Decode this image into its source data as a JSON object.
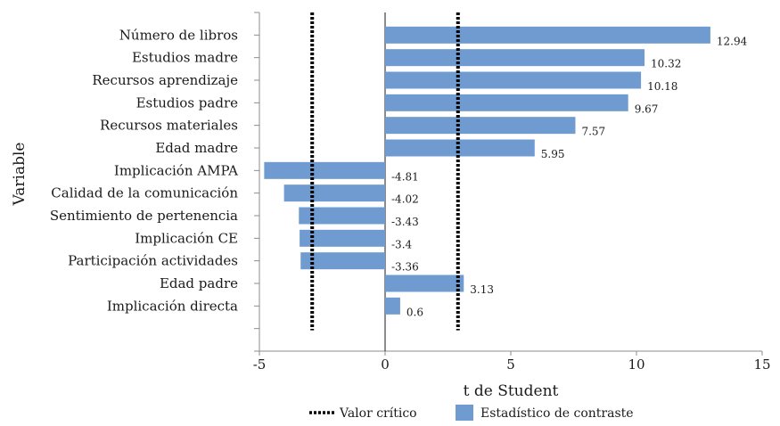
{
  "chart_data": {
    "type": "bar",
    "orientation": "horizontal",
    "title": "",
    "xlabel": "t de Student",
    "ylabel": "Variable",
    "xlim": [
      -5,
      15
    ],
    "xticks": [
      -5,
      0,
      5,
      10,
      15
    ],
    "grid": false,
    "legend_position": "bottom",
    "bar_color": "#6f9bd1",
    "critical_line_color": "#000000",
    "categories": [
      "Número de libros",
      "Estudios madre",
      "Recursos aprendizaje",
      "Estudios padre",
      "Recursos materiales",
      "Edad madre",
      "Implicación AMPA",
      "Calidad de la comunicación",
      "Sentimiento de pertenencia",
      "Implicación CE",
      "Participación actividades",
      "Edad padre",
      "Implicación directa"
    ],
    "series": [
      {
        "name": "Estadístico de contraste",
        "values": [
          12.94,
          10.32,
          10.18,
          9.67,
          7.57,
          5.95,
          -4.81,
          -4.02,
          -3.43,
          -3.4,
          -3.36,
          3.13,
          0.6
        ]
      }
    ],
    "critical_values": {
      "name": "Valor crítico",
      "values": [
        -2.9,
        2.9
      ]
    }
  }
}
